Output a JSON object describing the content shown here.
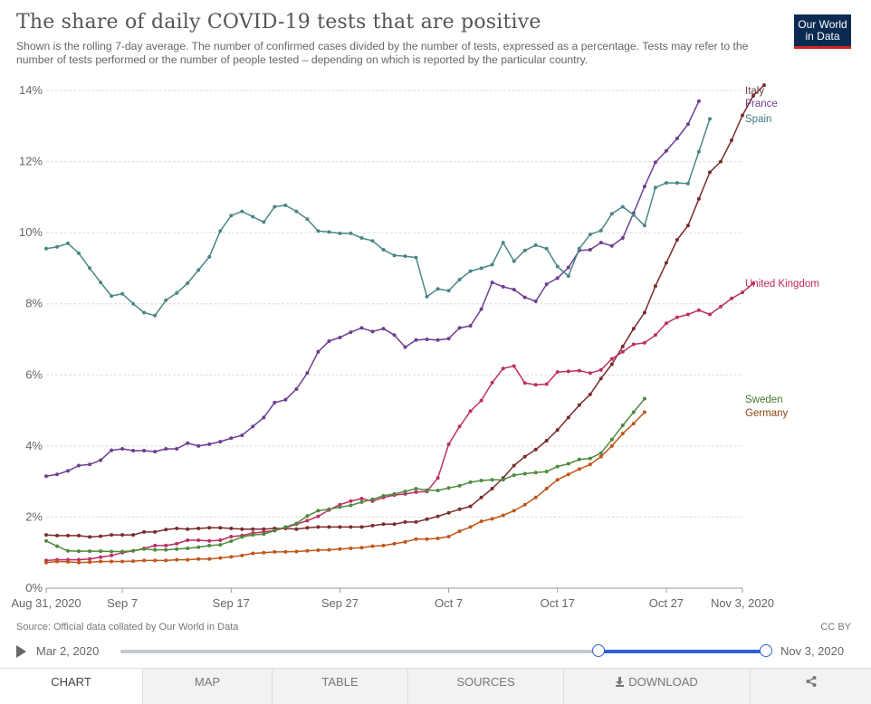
{
  "header": {
    "title": "The share of daily COVID-19 tests that are positive",
    "subtitle": "Shown is the rolling 7-day average. The number of confirmed cases divided by the number of tests, expressed as a percentage. Tests may refer to the number of tests performed or the number of people tested – depending on which is reported by the particular country.",
    "logo_line1": "Our World",
    "logo_line2": "in Data"
  },
  "footer": {
    "source": "Source: Official data collated by Our World in Data",
    "license": "CC BY"
  },
  "timeline": {
    "start_label": "Mar 2, 2020",
    "end_label": "Nov 3, 2020",
    "range_start_fraction": 0.74,
    "range_end_fraction": 1.0
  },
  "tabs": [
    {
      "label": "CHART",
      "active": true
    },
    {
      "label": "MAP"
    },
    {
      "label": "TABLE"
    },
    {
      "label": "SOURCES"
    },
    {
      "label": "DOWNLOAD",
      "icon": "download-icon"
    },
    {
      "label": "",
      "icon": "share-icon"
    }
  ],
  "chart_data": {
    "type": "line",
    "x_start_date": "2020-08-31",
    "x_ticks": [
      "Aug 31, 2020",
      "Sep 7",
      "Sep 17",
      "Sep 27",
      "Oct 7",
      "Oct 17",
      "Oct 27",
      "Nov 3, 2020"
    ],
    "x_tick_days": [
      0,
      7,
      17,
      27,
      37,
      47,
      57,
      64
    ],
    "y_ticks": [
      "0%",
      "2%",
      "4%",
      "6%",
      "8%",
      "10%",
      "12%",
      "14%"
    ],
    "ylim": [
      0,
      14
    ],
    "grid": true,
    "series": [
      {
        "name": "Italy",
        "color": "#6d3e3e",
        "line_color": "#7a2c2c",
        "start_day": 0,
        "values": [
          1.5,
          1.48,
          1.48,
          1.48,
          1.44,
          1.46,
          1.5,
          1.5,
          1.5,
          1.58,
          1.58,
          1.65,
          1.68,
          1.66,
          1.68,
          1.7,
          1.7,
          1.68,
          1.66,
          1.66,
          1.66,
          1.68,
          1.68,
          1.66,
          1.7,
          1.72,
          1.72,
          1.72,
          1.72,
          1.72,
          1.76,
          1.8,
          1.8,
          1.86,
          1.86,
          1.94,
          2.02,
          2.12,
          2.22,
          2.3,
          2.55,
          2.8,
          3.1,
          3.45,
          3.7,
          3.9,
          4.15,
          4.45,
          4.8,
          5.15,
          5.45,
          5.9,
          6.3,
          6.8,
          7.3,
          7.75,
          8.5,
          9.15,
          9.8,
          10.2,
          10.95,
          11.7,
          12.0,
          12.6,
          13.3,
          13.85,
          14.15
        ]
      },
      {
        "name": "France",
        "color": "#6d3e91",
        "line_color": "#6d3e91",
        "start_day": 0,
        "values": [
          3.15,
          3.2,
          3.3,
          3.45,
          3.48,
          3.6,
          3.88,
          3.92,
          3.87,
          3.87,
          3.84,
          3.92,
          3.92,
          4.08,
          4.0,
          4.05,
          4.12,
          4.22,
          4.3,
          4.55,
          4.8,
          5.22,
          5.3,
          5.6,
          6.05,
          6.65,
          6.95,
          7.05,
          7.2,
          7.32,
          7.22,
          7.3,
          7.12,
          6.78,
          6.98,
          7.0,
          6.98,
          7.02,
          7.32,
          7.38,
          7.85,
          8.6,
          8.48,
          8.4,
          8.18,
          8.07,
          8.55,
          8.72,
          9.02,
          9.5,
          9.52,
          9.72,
          9.63,
          9.85,
          10.55,
          11.3,
          11.98,
          12.3,
          12.65,
          13.05,
          13.7
        ]
      },
      {
        "name": "Spain",
        "color": "#3d7a78",
        "line_color": "#4a8785",
        "start_day": 0,
        "values": [
          9.55,
          9.6,
          9.7,
          9.42,
          9.0,
          8.6,
          8.22,
          8.28,
          8.0,
          7.75,
          7.67,
          8.1,
          8.3,
          8.58,
          8.95,
          9.32,
          10.05,
          10.48,
          10.6,
          10.45,
          10.3,
          10.73,
          10.77,
          10.6,
          10.38,
          10.05,
          10.02,
          9.98,
          9.98,
          9.85,
          9.77,
          9.52,
          9.36,
          9.34,
          9.3,
          8.2,
          8.42,
          8.37,
          8.68,
          8.92,
          9.0,
          9.1,
          9.72,
          9.2,
          9.5,
          9.65,
          9.55,
          9.05,
          8.78,
          9.55,
          9.95,
          10.06,
          10.53,
          10.73,
          10.5,
          10.2,
          11.27,
          11.4,
          11.4,
          11.38,
          12.28,
          13.2
        ]
      },
      {
        "name": "United Kingdom",
        "color": "#c0245a",
        "line_color": "#bd2f62",
        "start_day": 0,
        "values": [
          0.78,
          0.8,
          0.8,
          0.8,
          0.82,
          0.87,
          0.92,
          1.0,
          1.05,
          1.12,
          1.2,
          1.2,
          1.25,
          1.35,
          1.35,
          1.33,
          1.35,
          1.45,
          1.48,
          1.55,
          1.58,
          1.62,
          1.7,
          1.8,
          1.9,
          2.02,
          2.2,
          2.35,
          2.45,
          2.52,
          2.45,
          2.55,
          2.62,
          2.65,
          2.7,
          2.72,
          3.1,
          4.05,
          4.55,
          4.98,
          5.28,
          5.78,
          6.18,
          6.25,
          5.77,
          5.72,
          5.74,
          6.08,
          6.1,
          6.12,
          6.05,
          6.14,
          6.45,
          6.65,
          6.86,
          6.9,
          7.12,
          7.45,
          7.62,
          7.7,
          7.82,
          7.7,
          7.92,
          8.15,
          8.32,
          8.57
        ]
      },
      {
        "name": "Sweden",
        "color": "#417a2f",
        "line_color": "#4e8a3d",
        "start_day": 0,
        "values": [
          1.33,
          1.18,
          1.05,
          1.04,
          1.04,
          1.04,
          1.03,
          1.03,
          1.05,
          1.1,
          1.08,
          1.08,
          1.1,
          1.12,
          1.15,
          1.2,
          1.22,
          1.32,
          1.44,
          1.5,
          1.52,
          1.62,
          1.72,
          1.82,
          2.03,
          2.18,
          2.22,
          2.28,
          2.33,
          2.42,
          2.5,
          2.6,
          2.65,
          2.72,
          2.8,
          2.76,
          2.75,
          2.82,
          2.88,
          2.98,
          3.03,
          3.05,
          3.05,
          3.18,
          3.22,
          3.25,
          3.28,
          3.42,
          3.5,
          3.62,
          3.65,
          3.8,
          4.18,
          4.58,
          4.95,
          5.33
        ]
      },
      {
        "name": "Germany",
        "color": "#8b4513",
        "line_color": "#c0561a",
        "start_day": 0,
        "values": [
          0.72,
          0.75,
          0.74,
          0.72,
          0.73,
          0.75,
          0.75,
          0.75,
          0.76,
          0.78,
          0.78,
          0.78,
          0.8,
          0.8,
          0.82,
          0.82,
          0.85,
          0.88,
          0.92,
          0.98,
          1.0,
          1.02,
          1.02,
          1.03,
          1.05,
          1.07,
          1.08,
          1.1,
          1.12,
          1.14,
          1.18,
          1.2,
          1.25,
          1.3,
          1.38,
          1.38,
          1.4,
          1.45,
          1.6,
          1.72,
          1.88,
          1.95,
          2.05,
          2.18,
          2.35,
          2.55,
          2.8,
          3.05,
          3.2,
          3.35,
          3.48,
          3.7,
          4.0,
          4.35,
          4.63,
          4.95
        ]
      }
    ]
  }
}
